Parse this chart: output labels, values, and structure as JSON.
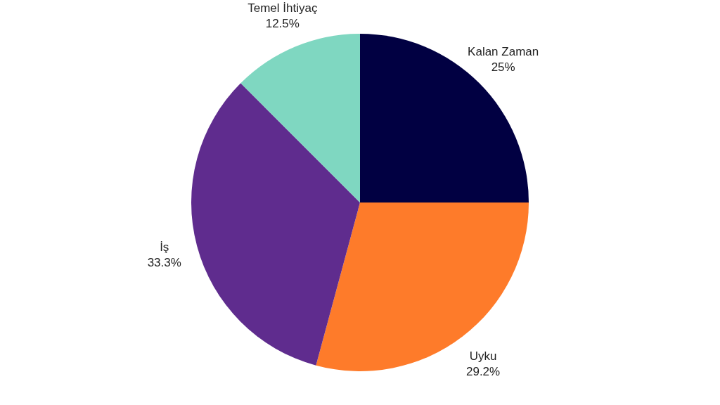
{
  "chart_data": {
    "type": "pie",
    "categories": [
      "Kalan Zaman",
      "Uyku",
      "İş",
      "Temel İhtiyaç"
    ],
    "values": [
      25,
      29.2,
      33.3,
      12.5
    ],
    "value_labels": [
      "25%",
      "29.2%",
      "33.3%",
      "12.5%"
    ],
    "colors": [
      "#010042",
      "#fe7b2a",
      "#5f2c8e",
      "#7fd7c1"
    ]
  }
}
